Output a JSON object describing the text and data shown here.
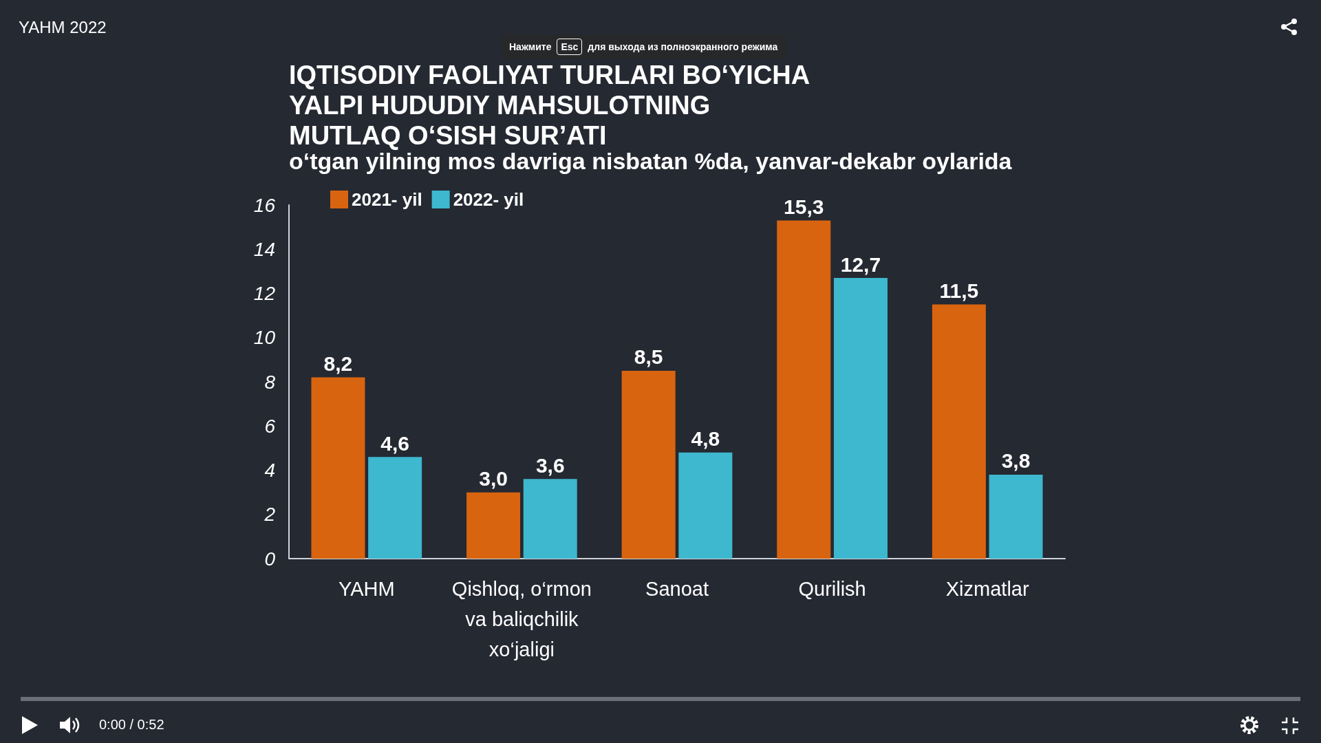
{
  "chart_data": {
    "type": "bar",
    "title": "IQTISODIY FAOLIYAT TURLARI BO‘YICHA\nYALPI HUDUDIY MAHSULOTNING\nMUTLAQ O‘SISH SUR’ATI",
    "subtitle": "o‘tgan yilning mos davriga nisbatan %da, yanvar-dekabr oylarida",
    "categories": [
      "YAHM",
      "Qishloq, o‘rmon va baliqchilik xo‘jaligi",
      "Sanoat",
      "Qurilish",
      "Xizmatlar"
    ],
    "series": [
      {
        "name": "2021- yil",
        "color": "#d9640f",
        "values": [
          8.2,
          3.0,
          8.5,
          15.3,
          11.5
        ],
        "value_labels": [
          "8,2",
          "3,0",
          "8,5",
          "15,3",
          "11,5"
        ]
      },
      {
        "name": "2022- yil",
        "color": "#3db8cf",
        "values": [
          4.6,
          3.6,
          4.8,
          12.7,
          3.8
        ],
        "value_labels": [
          "4,6",
          "3,6",
          "4,8",
          "12,7",
          "3,8"
        ]
      }
    ],
    "ylim": [
      0,
      16
    ],
    "yticks": [
      0,
      2,
      4,
      6,
      8,
      10,
      12,
      14,
      16
    ],
    "grid": false,
    "legend": "top left",
    "annotations": [
      "YAHM 2022",
      "Нажмите",
      "Esc",
      "для выхода из полноэкранного режима",
      "0:00 / 0:52"
    ]
  }
}
